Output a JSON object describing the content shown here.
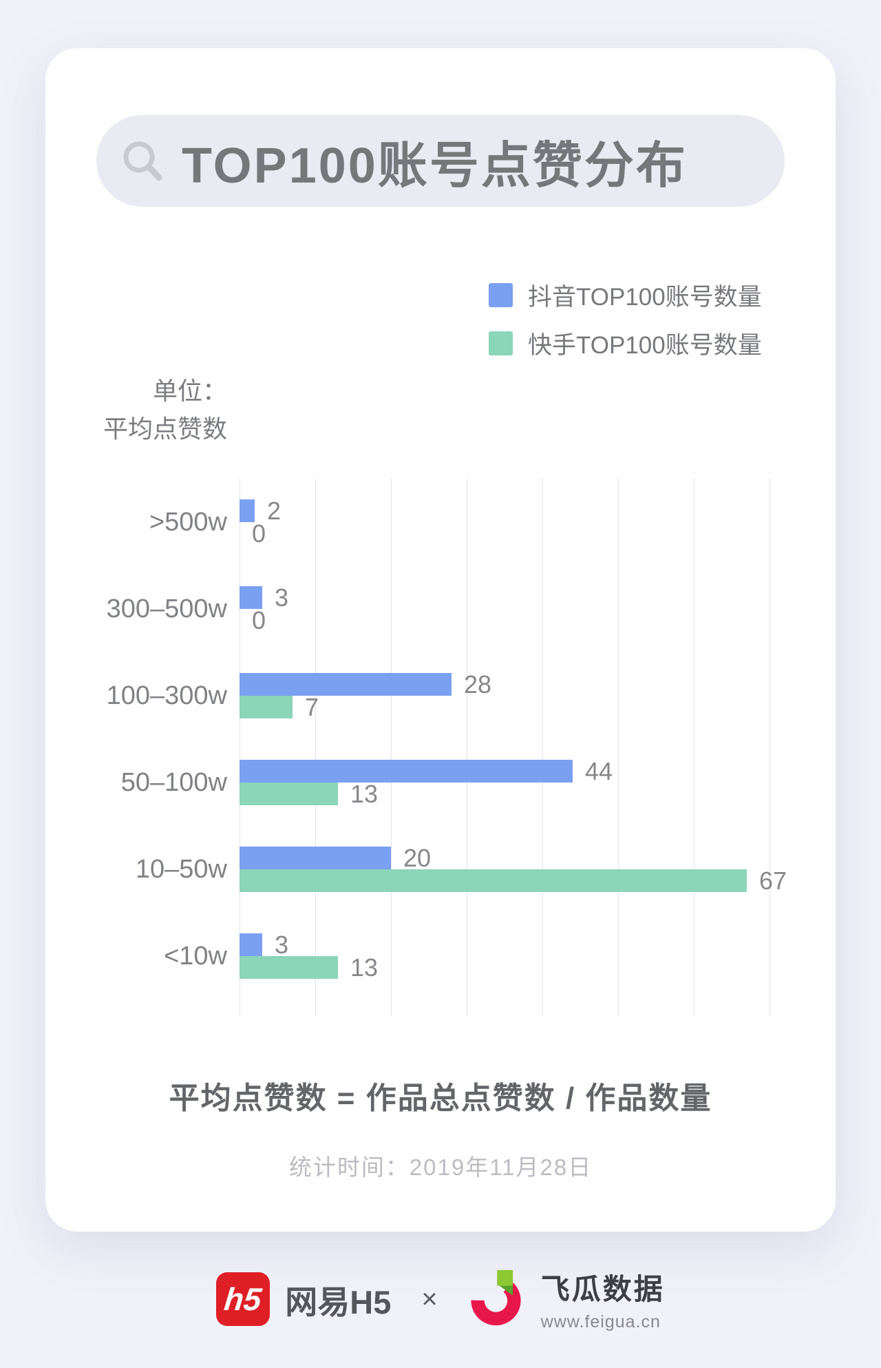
{
  "header": {
    "title": "TOP100账号点赞分布"
  },
  "unit": {
    "line1": "单位：",
    "line2": "平均点赞数"
  },
  "chart_data": {
    "type": "bar",
    "orientation": "horizontal",
    "title": "TOP100账号点赞分布",
    "unit": "平均点赞数",
    "categories": [
      ">500w",
      "300–500w",
      "100–300w",
      "50–100w",
      "10–50w",
      "<10w"
    ],
    "series": [
      {
        "name": "抖音TOP100账号数量",
        "color": "#7AA0F1",
        "values": [
          2,
          3,
          28,
          44,
          20,
          3
        ]
      },
      {
        "name": "快手TOP100账号数量",
        "color": "#8BD5B9",
        "values": [
          0,
          0,
          7,
          13,
          67,
          13
        ]
      }
    ],
    "xlim": [
      0,
      70
    ],
    "grid_step": 10,
    "grid": true,
    "legend_position": "top-right",
    "value_labels": true
  },
  "footnote": {
    "formula": "平均点赞数 = 作品总点赞数 / 作品数量",
    "stat_time": "统计时间：2019年11月28日"
  },
  "footer": {
    "netease_logo_text": "h5",
    "netease_label": "网易H5",
    "separator": "×",
    "feigua_label": "飞瓜数据",
    "feigua_url": "www.feigua.cn"
  },
  "colors": {
    "page_bg": "#F1F1F9",
    "card_bg": "#FFFFFF",
    "pill_bg": "#EAEAF3",
    "title_text": "#76777A",
    "grid": "#E3E3E8",
    "label_text": "#85868A",
    "douyin_blue": "#7AA0F1",
    "kuaishou_green": "#8BD5B9",
    "netease_red": "#DF1F26",
    "feigua_pink": "#E8174B",
    "feigua_green": "#8CC832"
  }
}
